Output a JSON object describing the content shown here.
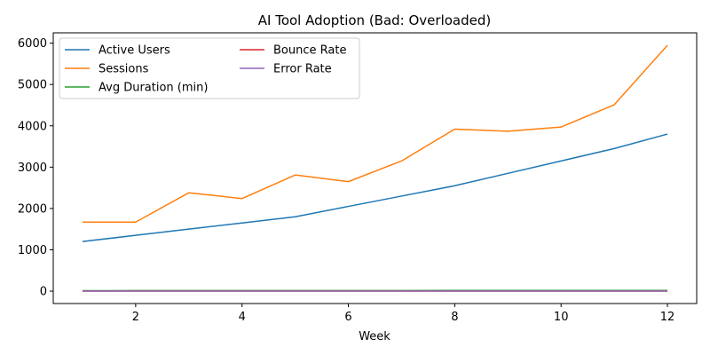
{
  "chart_data": {
    "type": "line",
    "title": "AI Tool Adoption (Bad: Overloaded)",
    "xlabel": "Week",
    "ylabel": "",
    "x": [
      1,
      2,
      3,
      4,
      5,
      6,
      7,
      8,
      9,
      10,
      11,
      12
    ],
    "xlim": [
      0.45,
      12.55
    ],
    "ylim": [
      -300,
      6250
    ],
    "xticks": [
      2,
      4,
      6,
      8,
      10,
      12
    ],
    "yticks": [
      0,
      1000,
      2000,
      3000,
      4000,
      5000,
      6000
    ],
    "grid": false,
    "legend_placement": "top-left",
    "legend_columns": 2,
    "series": [
      {
        "name": "Active Users",
        "color": "#1f77b4",
        "values": [
          1200,
          1350,
          1500,
          1650,
          1800,
          2050,
          2300,
          2550,
          2850,
          3150,
          3450,
          3800
        ]
      },
      {
        "name": "Sessions",
        "color": "#ff7f0e",
        "values": [
          1670,
          1670,
          2380,
          2240,
          2810,
          2650,
          3150,
          3920,
          3870,
          3970,
          4510,
          5950
        ]
      },
      {
        "name": "Avg Duration (min)",
        "color": "#2ca02c",
        "values": [
          12,
          13,
          13,
          14,
          14,
          15,
          15,
          16,
          16,
          17,
          17,
          18
        ]
      },
      {
        "name": "Bounce Rate",
        "color": "#d62728",
        "values": [
          0.45,
          0.44,
          0.43,
          0.42,
          0.41,
          0.4,
          0.39,
          0.38,
          0.37,
          0.36,
          0.35,
          0.34
        ]
      },
      {
        "name": "Error Rate",
        "color": "#9467bd",
        "values": [
          0.05,
          0.05,
          0.04,
          0.04,
          0.04,
          0.03,
          0.03,
          0.03,
          0.02,
          0.02,
          0.02,
          0.02
        ]
      }
    ]
  }
}
